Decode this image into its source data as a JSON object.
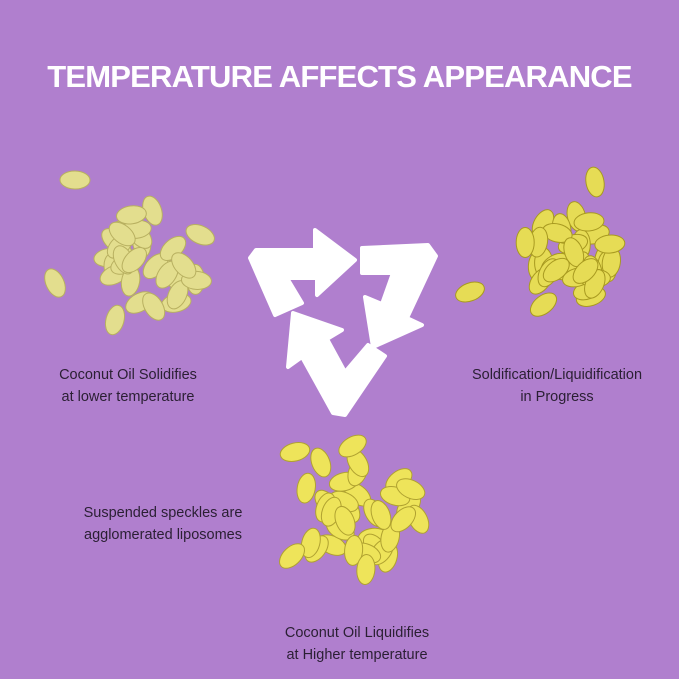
{
  "title": "TEMPERATURE AFFECTS APPEARANCE",
  "colors": {
    "background": "#b07fce",
    "arrows": "#ffffff",
    "solid_capsule": "#e3de8e",
    "liquid_capsule": "#eee45a"
  },
  "icon": "recycle-cycle-arrows-icon",
  "labels": {
    "solid": [
      "Coconut Oil Solidifies",
      "at lower temperature"
    ],
    "progress": [
      "Soldification/Liquidification",
      "in Progress"
    ],
    "speckles": [
      "Suspended speckles are",
      "agglomerated liposomes"
    ],
    "liquid": [
      "Coconut Oil Liquidifies",
      "at Higher temperature"
    ]
  }
}
